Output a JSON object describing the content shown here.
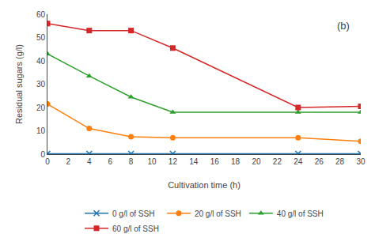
{
  "chart_data": {
    "type": "line",
    "title": "(b)",
    "xlabel": "Cultivation time (h)",
    "ylabel": "Residual sugars (g/l)",
    "x": [
      0,
      4,
      8,
      12,
      24,
      30
    ],
    "series": [
      {
        "name": "0 g/l of SSH",
        "marker": "x",
        "values": [
          0.2,
          0.2,
          0.2,
          0.2,
          0.2,
          0.2
        ]
      },
      {
        "name": "20 g/l of SSH",
        "marker": "circle",
        "values": [
          21.5,
          11.0,
          7.5,
          7.0,
          7.0,
          5.5
        ]
      },
      {
        "name": "40 g/l of SSH",
        "marker": "triangle",
        "values": [
          43.0,
          33.5,
          24.5,
          18.0,
          18.0,
          18.0
        ]
      },
      {
        "name": "60 g/l of SSH",
        "marker": "square",
        "values": [
          56.0,
          53.0,
          53.0,
          45.5,
          20.0,
          20.5
        ]
      }
    ],
    "xlim": [
      0,
      30
    ],
    "ylim": [
      0,
      60
    ],
    "xticks": [
      0,
      2,
      4,
      6,
      8,
      10,
      12,
      14,
      16,
      18,
      20,
      22,
      24,
      26,
      28,
      30
    ],
    "yticks": [
      0,
      10,
      20,
      30,
      40,
      50,
      60
    ],
    "grid": false,
    "legend": "bottom"
  }
}
